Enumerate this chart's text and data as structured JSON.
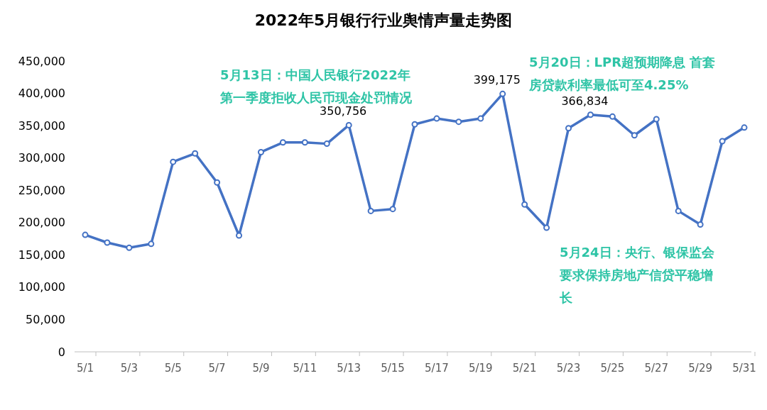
{
  "chart_data": {
    "type": "line",
    "title": "2022年5月银行行业舆情声量走势图",
    "categories": [
      "5/1",
      null,
      "5/3",
      null,
      "5/5",
      null,
      "5/7",
      null,
      "5/9",
      null,
      "5/11",
      null,
      "5/13",
      null,
      "5/15",
      null,
      "5/17",
      null,
      "5/19",
      null,
      "5/21",
      null,
      "5/23",
      null,
      "5/25",
      null,
      "5/27",
      null,
      "5/29",
      null,
      "5/31"
    ],
    "series": [
      {
        "color": "#4472c4",
        "values": [
          181000,
          169000,
          161000,
          167000,
          294000,
          307000,
          262000,
          180000,
          309000,
          324000,
          324000,
          322000,
          350756,
          218000,
          221000,
          352000,
          361000,
          356000,
          361000,
          399175,
          228000,
          192000,
          346000,
          366834,
          364000,
          335000,
          360000,
          218000,
          197000,
          326000,
          347000
        ],
        "value_labels": [
          null,
          null,
          null,
          null,
          null,
          null,
          null,
          null,
          null,
          null,
          null,
          null,
          "350,756",
          null,
          null,
          null,
          null,
          null,
          null,
          "399,175",
          null,
          null,
          null,
          "366,834",
          null,
          null,
          null,
          null,
          null,
          null,
          null
        ]
      }
    ],
    "ylim": [
      0,
      450000
    ],
    "yticks": [
      0,
      {
        "value": 50000,
        "label": "50,000"
      },
      {
        "value": 100000,
        "label": "100,000"
      },
      {
        "value": 150000,
        "label": "150,000"
      },
      {
        "value": 200000,
        "label": "200,000"
      },
      {
        "value": 250000,
        "label": "250,000"
      },
      {
        "value": 300000,
        "label": "300,000"
      },
      {
        "value": 350000,
        "label": "350,000"
      },
      {
        "value": 400000,
        "label": "400,000"
      },
      {
        "value": 450000,
        "label": "450,000"
      }
    ],
    "grid": false,
    "marker": "circle",
    "line_style": "solid",
    "annotations": [
      "5月13日：中国人民银行2022年第一季度拒收人民币现金处罚情况",
      "5月20日：LPR超预期降息 首套房贷款利率最低可至4.25%",
      "5月24日：央行、银保监会要求保持房地产信贷平稳增长"
    ]
  }
}
